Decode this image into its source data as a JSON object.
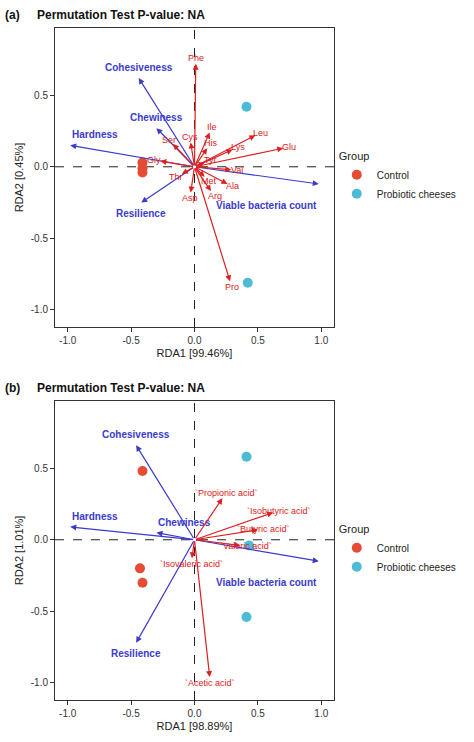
{
  "chart_data": [
    {
      "type": "biplot",
      "label": "(a)",
      "title": "Permutation Test P-value: NA",
      "x_label": "RDA1 [99.46%]",
      "y_label": "RDA2 [0.45%]",
      "xlim": [
        -1.1,
        1.1
      ],
      "ylim": [
        -1.12,
        0.97
      ],
      "xticks": [
        {
          "value": -1,
          "label": "-1.0"
        },
        -0.5,
        {
          "value": 0,
          "label": "0.0"
        },
        0.5,
        {
          "value": 1,
          "label": "1.0"
        }
      ],
      "yticks": [
        {
          "value": -1,
          "label": "-1.0"
        },
        -0.5,
        {
          "value": 0,
          "label": "0.0"
        },
        0.5
      ],
      "grid": false,
      "legend_title": "Group",
      "series": [
        {
          "name": "Control",
          "color": "#E64B35",
          "marker": "circle",
          "x": [
            -0.41,
            -0.41,
            -0.41
          ],
          "y": [
            0.03,
            -0.01,
            -0.04
          ]
        },
        {
          "name": "Probiotic cheeses",
          "color": "#4DBBD5",
          "marker": "circle",
          "x": [
            0.41,
            0.42
          ],
          "y": [
            0.42,
            -0.81
          ]
        }
      ],
      "arrows": [
        {
          "type": "explanatory",
          "color": "#3B3BCB",
          "labels": [
            "Cohesiveness",
            "Chewiness",
            "Hardness",
            "Resilience",
            "Viable bacteria count"
          ],
          "x": [
            -0.44,
            -0.3,
            -0.98,
            -0.42,
            0.98
          ],
          "y": [
            0.62,
            0.27,
            0.15,
            -0.25,
            -0.12
          ]
        },
        {
          "type": "response",
          "color": "#DC2020",
          "labels": [
            "Phe",
            "Ser",
            "Cys",
            "Ile",
            "His",
            "Leu",
            "Lys",
            "Glu",
            "Gly",
            "Tyr",
            "Thr",
            "Met",
            "Val",
            "Asp",
            "Arg",
            "Ala",
            "Pro"
          ],
          "x": [
            0.01,
            -0.17,
            -0.03,
            0.12,
            0.1,
            0.48,
            0.3,
            0.7,
            -0.27,
            0.08,
            -0.1,
            0.08,
            0.29,
            -0.03,
            0.13,
            0.26,
            0.28
          ],
          "y": [
            0.72,
            0.16,
            0.17,
            0.24,
            0.13,
            0.22,
            0.12,
            0.13,
            0.04,
            0.03,
            -0.05,
            -0.07,
            -0.02,
            -0.18,
            -0.17,
            -0.12,
            -0.8
          ]
        }
      ]
    },
    {
      "type": "biplot",
      "label": "(b)",
      "title": "Permutation Test P-value: NA",
      "x_label": "RDA1 [98.89%]",
      "y_label": "RDA2 [1.01%]",
      "xlim": [
        -1.1,
        1.1
      ],
      "ylim": [
        -1.12,
        0.97
      ],
      "xticks": [
        {
          "value": -1,
          "label": "-1.0"
        },
        -0.5,
        {
          "value": 0,
          "label": "0.0"
        },
        0.5,
        {
          "value": 1,
          "label": "1.0"
        }
      ],
      "yticks": [
        {
          "value": -1,
          "label": "-1.0"
        },
        -0.5,
        {
          "value": 0,
          "label": "0.0"
        },
        0.5
      ],
      "grid": false,
      "legend_title": "Group",
      "series": [
        {
          "name": "Control",
          "color": "#E64B35",
          "marker": "circle",
          "x": [
            -0.41,
            -0.43,
            -0.41
          ],
          "y": [
            0.48,
            -0.2,
            -0.3
          ]
        },
        {
          "name": "Probiotic cheeses",
          "color": "#4DBBD5",
          "marker": "circle",
          "x": [
            0.41,
            0.43,
            0.41
          ],
          "y": [
            0.58,
            -0.04,
            -0.54
          ]
        }
      ],
      "arrows": [
        {
          "type": "explanatory",
          "color": "#3B3BCB",
          "labels": [
            "Cohesiveness",
            "Hardness",
            "Chewiness",
            "Resilience",
            "Viable bacteria count"
          ],
          "x": [
            -0.46,
            -0.98,
            -0.3,
            -0.46,
            0.98
          ],
          "y": [
            0.66,
            0.09,
            0.05,
            -0.72,
            -0.15
          ]
        },
        {
          "type": "response",
          "color": "#DC2020",
          "labels": [
            "`Propionic acid`",
            "`Isobutyric acid`",
            "`Butyric acid`",
            "`Valeric acid`",
            "`Isovaleric acid`",
            "`Acetic acid`"
          ],
          "x": [
            0.22,
            0.62,
            0.5,
            0.36,
            -0.02,
            0.12
          ],
          "y": [
            0.29,
            0.19,
            0.07,
            -0.04,
            -0.13,
            -0.96
          ]
        }
      ]
    }
  ]
}
